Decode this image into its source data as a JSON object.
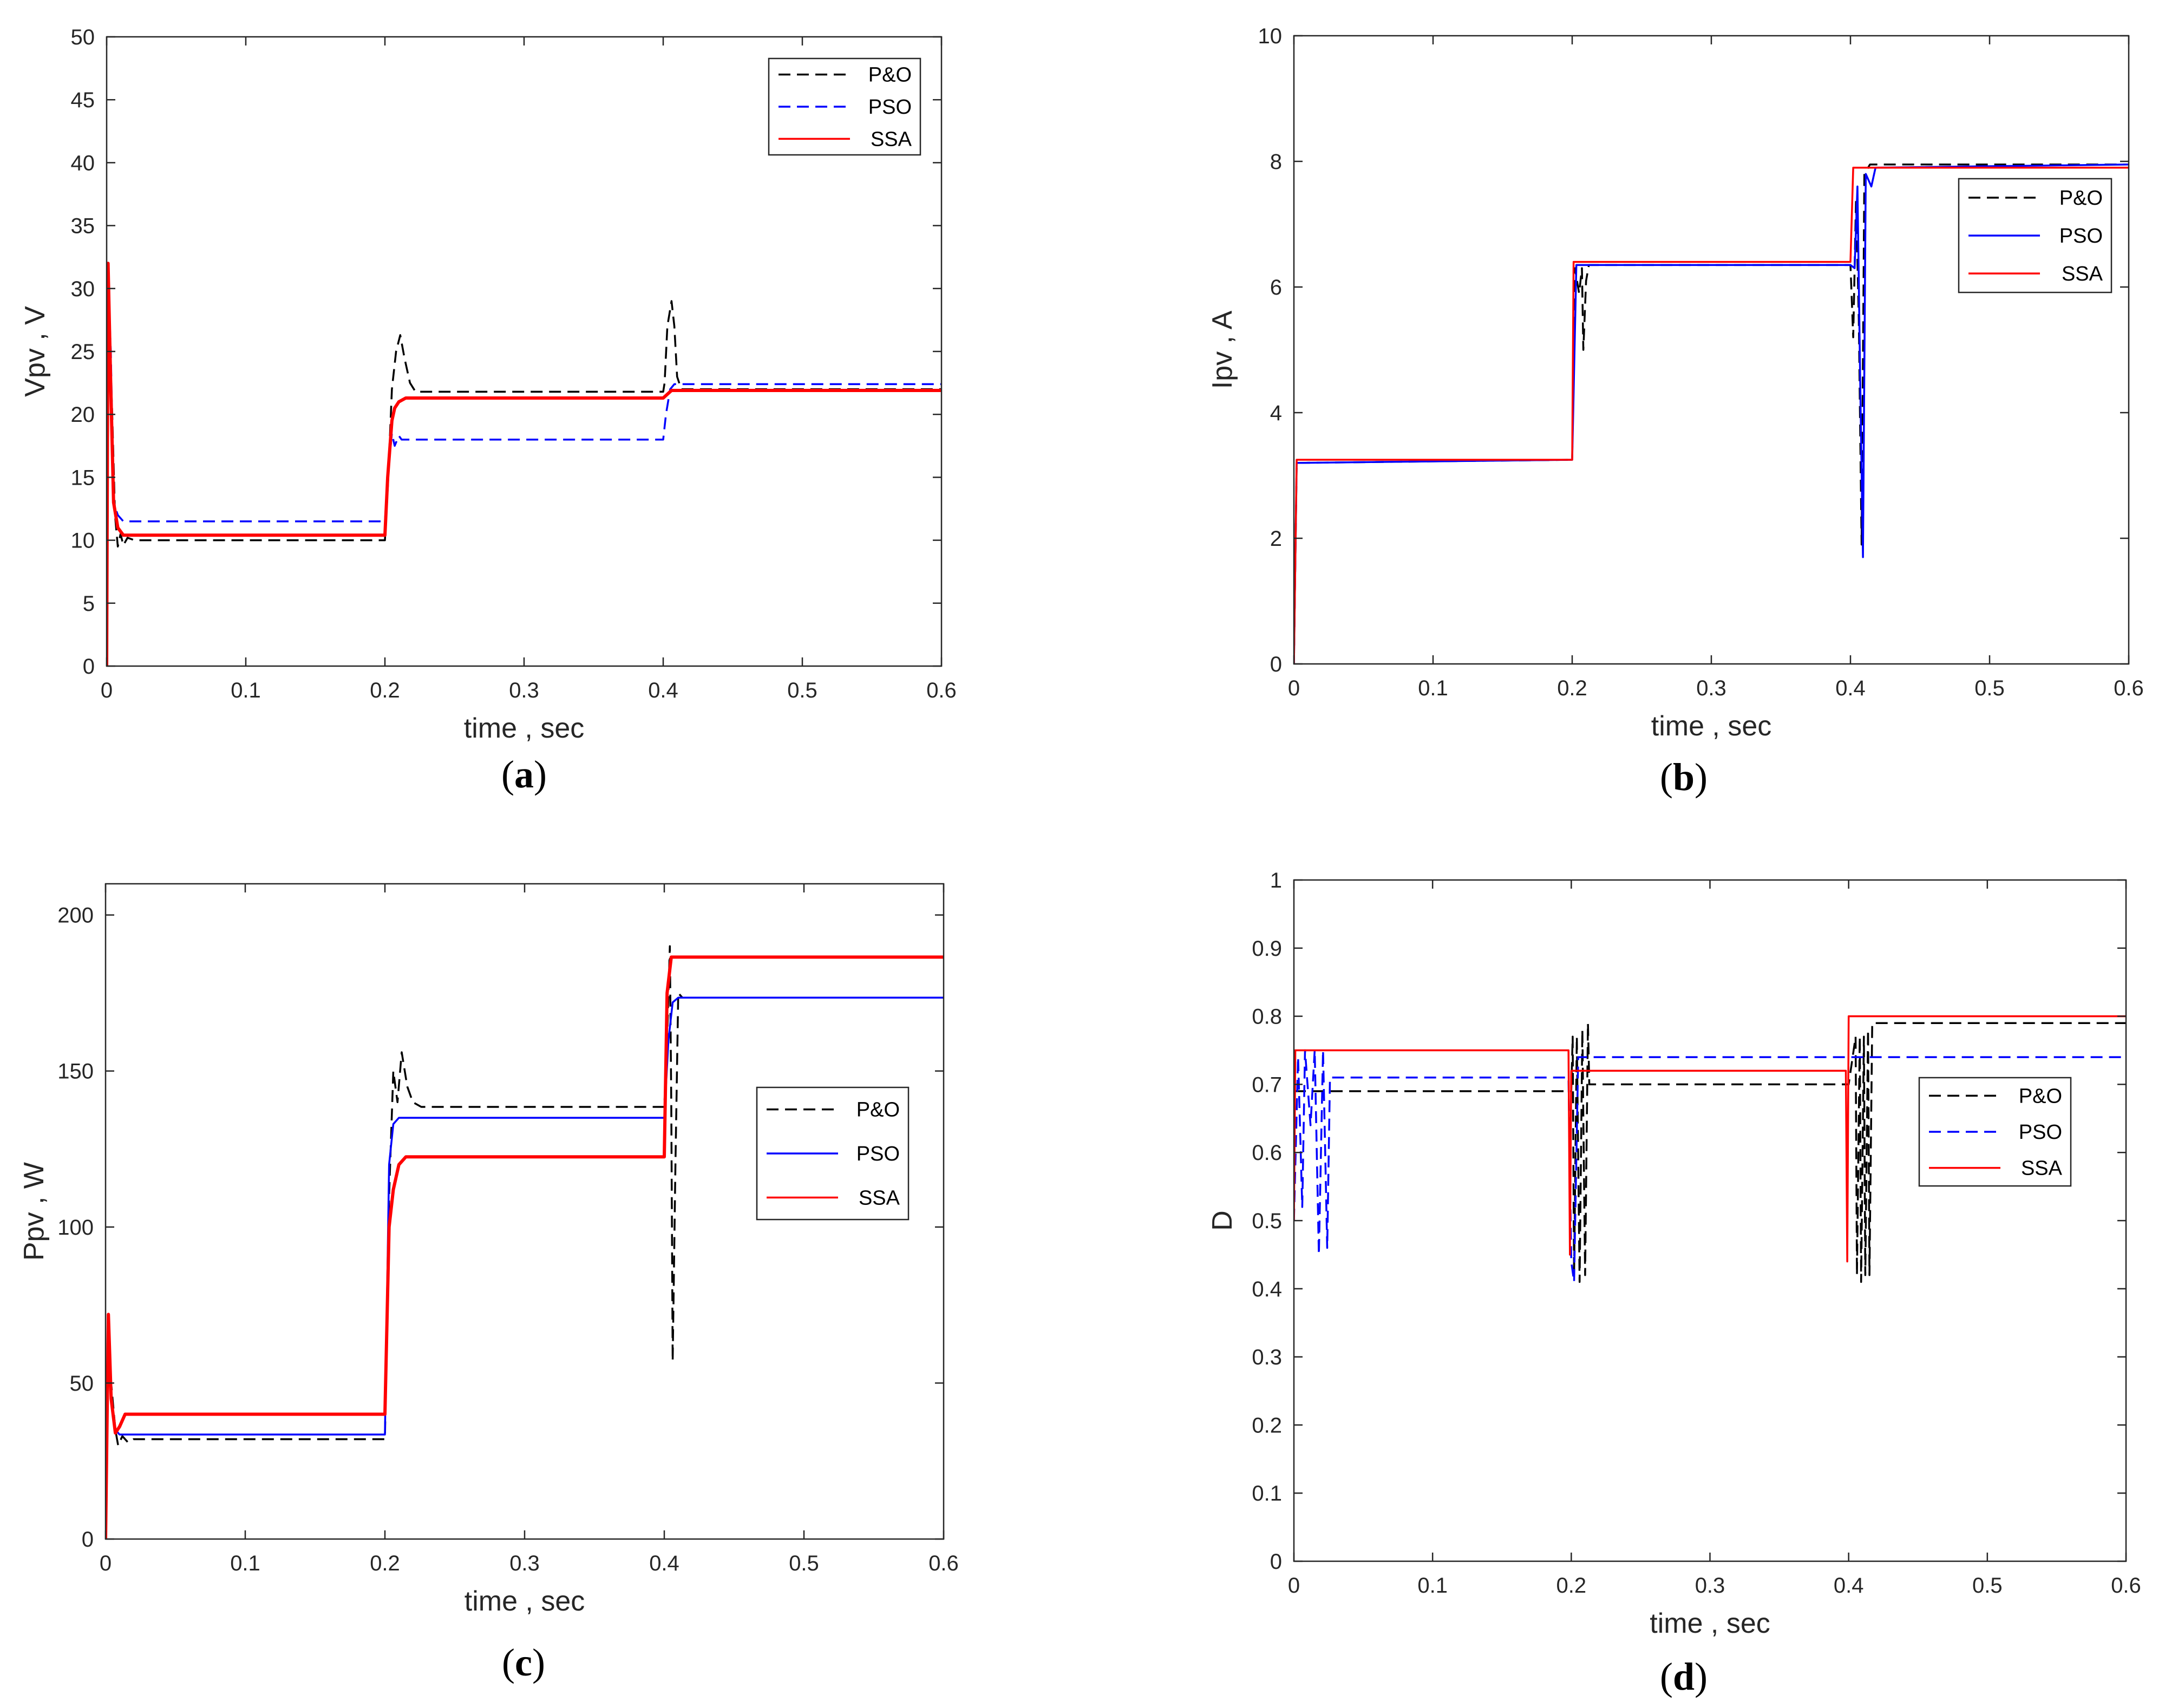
{
  "figure": {
    "series_colors": {
      "P&O": "#000000",
      "PSO": "#0000ff",
      "SSA": "#ff0000"
    }
  },
  "chart_data": [
    {
      "id": "a",
      "type": "line",
      "caption_letter": "a",
      "xlabel": "time , sec",
      "ylabel": "Vpv , V",
      "xlim": [
        0,
        0.6
      ],
      "ylim": [
        0,
        50
      ],
      "xticks": [
        0,
        0.1,
        0.2,
        0.3,
        0.4,
        0.5,
        0.6
      ],
      "yticks": [
        0,
        5,
        10,
        15,
        20,
        25,
        30,
        35,
        40,
        45,
        50
      ],
      "legend_position": "top-right",
      "series": [
        {
          "name": "P&O",
          "style": "dashed",
          "points": [
            [
              0,
              0
            ],
            [
              0.001,
              30
            ],
            [
              0.004,
              20
            ],
            [
              0.006,
              12
            ],
            [
              0.008,
              9.5
            ],
            [
              0.01,
              10.5
            ],
            [
              0.012,
              9.6
            ],
            [
              0.015,
              10.2
            ],
            [
              0.02,
              10
            ],
            [
              0.2,
              10
            ],
            [
              0.202,
              14
            ],
            [
              0.205,
              22
            ],
            [
              0.208,
              25
            ],
            [
              0.211,
              26.3
            ],
            [
              0.214,
              24.5
            ],
            [
              0.218,
              22.5
            ],
            [
              0.222,
              21.8
            ],
            [
              0.4,
              21.8
            ],
            [
              0.401,
              22.5
            ],
            [
              0.403,
              27
            ],
            [
              0.406,
              29
            ],
            [
              0.408,
              27
            ],
            [
              0.41,
              23
            ],
            [
              0.413,
              22
            ],
            [
              0.6,
              22
            ]
          ]
        },
        {
          "name": "PSO",
          "style": "dashed",
          "points": [
            [
              0,
              0
            ],
            [
              0.001,
              31
            ],
            [
              0.003,
              25
            ],
            [
              0.005,
              13
            ],
            [
              0.008,
              12
            ],
            [
              0.012,
              11.5
            ],
            [
              0.2,
              11.5
            ],
            [
              0.202,
              15
            ],
            [
              0.205,
              18.5
            ],
            [
              0.207,
              17.5
            ],
            [
              0.21,
              18.3
            ],
            [
              0.212,
              18
            ],
            [
              0.4,
              18
            ],
            [
              0.402,
              20
            ],
            [
              0.405,
              22
            ],
            [
              0.408,
              22.4
            ],
            [
              0.6,
              22.4
            ]
          ]
        },
        {
          "name": "SSA",
          "style": "solid",
          "points": [
            [
              0,
              0
            ],
            [
              0.001,
              32
            ],
            [
              0.003,
              22
            ],
            [
              0.005,
              13
            ],
            [
              0.008,
              11
            ],
            [
              0.012,
              10.4
            ],
            [
              0.2,
              10.4
            ],
            [
              0.202,
              15
            ],
            [
              0.205,
              19.5
            ],
            [
              0.207,
              20.5
            ],
            [
              0.21,
              21
            ],
            [
              0.215,
              21.3
            ],
            [
              0.4,
              21.3
            ],
            [
              0.403,
              21.6
            ],
            [
              0.406,
              21.9
            ],
            [
              0.6,
              21.9
            ]
          ]
        }
      ]
    },
    {
      "id": "b",
      "type": "line",
      "caption_letter": "b",
      "xlabel": "time , sec",
      "ylabel": "Ipv , A",
      "xlim": [
        0,
        0.6
      ],
      "ylim": [
        0,
        10
      ],
      "xticks": [
        0,
        0.1,
        0.2,
        0.3,
        0.4,
        0.5,
        0.6
      ],
      "yticks": [
        0,
        2,
        4,
        6,
        8,
        10
      ],
      "legend_position": "top-right",
      "series": [
        {
          "name": "P&O",
          "style": "dashed",
          "points": [
            [
              0,
              0
            ],
            [
              0.002,
              3.2
            ],
            [
              0.2,
              3.25
            ],
            [
              0.202,
              6.3
            ],
            [
              0.205,
              5.9
            ],
            [
              0.207,
              6.3
            ],
            [
              0.208,
              5
            ],
            [
              0.21,
              6.1
            ],
            [
              0.212,
              6.35
            ],
            [
              0.4,
              6.35
            ],
            [
              0.402,
              5.2
            ],
            [
              0.404,
              7.4
            ],
            [
              0.406,
              5.5
            ],
            [
              0.408,
              1.9
            ],
            [
              0.41,
              7.8
            ],
            [
              0.414,
              7.95
            ],
            [
              0.6,
              7.95
            ]
          ]
        },
        {
          "name": "PSO",
          "style": "solid",
          "points": [
            [
              0,
              0
            ],
            [
              0.002,
              3.2
            ],
            [
              0.2,
              3.25
            ],
            [
              0.203,
              6.35
            ],
            [
              0.4,
              6.35
            ],
            [
              0.403,
              6.3
            ],
            [
              0.405,
              7.6
            ],
            [
              0.407,
              4.5
            ],
            [
              0.409,
              1.7
            ],
            [
              0.411,
              7.8
            ],
            [
              0.415,
              7.6
            ],
            [
              0.418,
              7.9
            ],
            [
              0.6,
              7.95
            ]
          ]
        },
        {
          "name": "SSA",
          "style": "solid",
          "points": [
            [
              0,
              0
            ],
            [
              0.002,
              3.25
            ],
            [
              0.2,
              3.25
            ],
            [
              0.201,
              6.4
            ],
            [
              0.4,
              6.4
            ],
            [
              0.402,
              7.9
            ],
            [
              0.6,
              7.9
            ]
          ]
        }
      ]
    },
    {
      "id": "c",
      "type": "line",
      "caption_letter": "c",
      "xlabel": "time , sec",
      "ylabel": "Ppv , W",
      "xlim": [
        0,
        0.6
      ],
      "ylim": [
        0,
        210
      ],
      "xticks": [
        0,
        0.1,
        0.2,
        0.3,
        0.4,
        0.5,
        0.6
      ],
      "yticks": [
        0,
        50,
        100,
        150,
        200
      ],
      "legend_position": "right",
      "series": [
        {
          "name": "P&O",
          "style": "dashed",
          "points": [
            [
              0,
              0
            ],
            [
              0.002,
              70
            ],
            [
              0.004,
              50
            ],
            [
              0.007,
              35
            ],
            [
              0.009,
              30
            ],
            [
              0.012,
              33
            ],
            [
              0.016,
              31
            ],
            [
              0.02,
              32
            ],
            [
              0.2,
              32
            ],
            [
              0.203,
              110
            ],
            [
              0.206,
              150
            ],
            [
              0.209,
              140
            ],
            [
              0.212,
              156
            ],
            [
              0.216,
              145
            ],
            [
              0.22,
              140
            ],
            [
              0.226,
              138.5
            ],
            [
              0.4,
              138.5
            ],
            [
              0.402,
              160
            ],
            [
              0.404,
              190
            ],
            [
              0.405,
              140
            ],
            [
              0.406,
              57
            ],
            [
              0.408,
              120
            ],
            [
              0.41,
              175
            ],
            [
              0.413,
              173.5
            ],
            [
              0.6,
              173.5
            ]
          ]
        },
        {
          "name": "PSO",
          "style": "solid",
          "points": [
            [
              0,
              0
            ],
            [
              0.002,
              70
            ],
            [
              0.004,
              45
            ],
            [
              0.007,
              35
            ],
            [
              0.01,
              33.5
            ],
            [
              0.2,
              33.5
            ],
            [
              0.203,
              120
            ],
            [
              0.206,
              133
            ],
            [
              0.21,
              135
            ],
            [
              0.4,
              135
            ],
            [
              0.403,
              160
            ],
            [
              0.406,
              172
            ],
            [
              0.41,
              173.5
            ],
            [
              0.6,
              173.5
            ]
          ]
        },
        {
          "name": "SSA",
          "style": "solid",
          "points": [
            [
              0,
              0
            ],
            [
              0.002,
              72
            ],
            [
              0.004,
              45
            ],
            [
              0.007,
              34
            ],
            [
              0.01,
              36
            ],
            [
              0.014,
              40
            ],
            [
              0.2,
              40
            ],
            [
              0.203,
              100
            ],
            [
              0.206,
              112
            ],
            [
              0.21,
              120
            ],
            [
              0.215,
              122.5
            ],
            [
              0.4,
              122.5
            ],
            [
              0.402,
              175
            ],
            [
              0.405,
              186.5
            ],
            [
              0.6,
              186.5
            ]
          ]
        }
      ]
    },
    {
      "id": "d",
      "type": "line",
      "caption_letter": "d",
      "xlabel": "time , sec",
      "ylabel": "D",
      "xlim": [
        0,
        0.6
      ],
      "ylim": [
        0,
        1
      ],
      "xticks": [
        0,
        0.1,
        0.2,
        0.3,
        0.4,
        0.5,
        0.6
      ],
      "yticks": [
        0,
        0.1,
        0.2,
        0.3,
        0.4,
        0.5,
        0.6,
        0.7,
        0.8,
        0.9,
        1
      ],
      "legend_position": "right",
      "series": [
        {
          "name": "P&O",
          "style": "dashed",
          "points": [
            [
              0,
              0.69
            ],
            [
              0.2,
              0.69
            ],
            [
              0.201,
              0.77
            ],
            [
              0.202,
              0.42
            ],
            [
              0.204,
              0.77
            ],
            [
              0.206,
              0.41
            ],
            [
              0.208,
              0.78
            ],
            [
              0.21,
              0.42
            ],
            [
              0.212,
              0.79
            ],
            [
              0.213,
              0.7
            ],
            [
              0.4,
              0.7
            ],
            [
              0.405,
              0.77
            ],
            [
              0.406,
              0.42
            ],
            [
              0.408,
              0.77
            ],
            [
              0.409,
              0.41
            ],
            [
              0.411,
              0.77
            ],
            [
              0.412,
              0.42
            ],
            [
              0.414,
              0.78
            ],
            [
              0.415,
              0.42
            ],
            [
              0.417,
              0.79
            ],
            [
              0.6,
              0.79
            ]
          ]
        },
        {
          "name": "PSO",
          "style": "dashed",
          "points": [
            [
              0,
              0.5
            ],
            [
              0.003,
              0.74
            ],
            [
              0.006,
              0.52
            ],
            [
              0.008,
              0.75
            ],
            [
              0.012,
              0.64
            ],
            [
              0.015,
              0.75
            ],
            [
              0.018,
              0.45
            ],
            [
              0.021,
              0.75
            ],
            [
              0.024,
              0.46
            ],
            [
              0.026,
              0.71
            ],
            [
              0.198,
              0.71
            ],
            [
              0.2,
              0.44
            ],
            [
              0.202,
              0.41
            ],
            [
              0.205,
              0.74
            ],
            [
              0.6,
              0.74
            ]
          ]
        },
        {
          "name": "SSA",
          "style": "solid",
          "points": [
            [
              0,
              0.5
            ],
            [
              0.001,
              0.75
            ],
            [
              0.198,
              0.75
            ],
            [
              0.199,
              0.45
            ],
            [
              0.2,
              0.72
            ],
            [
              0.398,
              0.72
            ],
            [
              0.399,
              0.44
            ],
            [
              0.4,
              0.8
            ],
            [
              0.6,
              0.8
            ]
          ]
        }
      ]
    }
  ]
}
